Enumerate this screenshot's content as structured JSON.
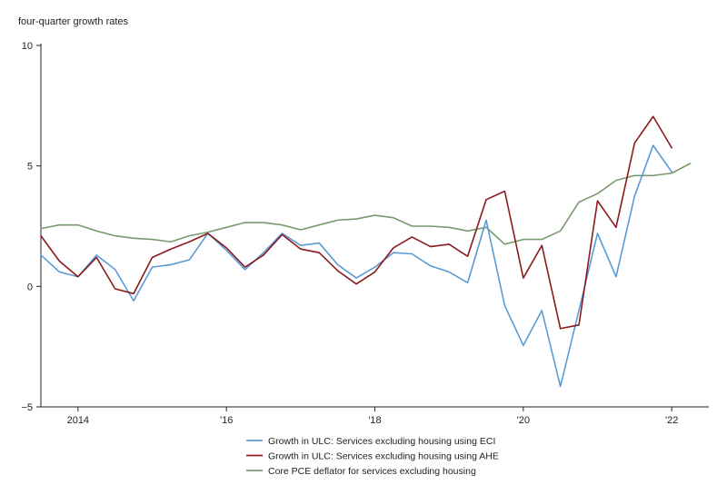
{
  "chart_data": {
    "type": "line",
    "ylabel": "four-quarter growth rates",
    "ylim": [
      -5,
      10
    ],
    "xlim": [
      2013.5,
      2022.5
    ],
    "y_ticks": [
      {
        "value": 10,
        "label": "10"
      },
      {
        "value": 5,
        "label": "5"
      },
      {
        "value": 0,
        "label": "0"
      },
      {
        "value": -5,
        "label": "−5"
      }
    ],
    "x_ticks": [
      {
        "value": 2014,
        "label": "2014"
      },
      {
        "value": 2016,
        "label": "'16"
      },
      {
        "value": 2018,
        "label": "'18"
      },
      {
        "value": 2020,
        "label": "'20"
      },
      {
        "value": 2022,
        "label": "'22"
      }
    ],
    "grid": false,
    "legend_position": "bottom",
    "x": [
      2013.5,
      2013.75,
      2014.0,
      2014.25,
      2014.5,
      2014.75,
      2015.0,
      2015.25,
      2015.5,
      2015.75,
      2016.0,
      2016.25,
      2016.5,
      2016.75,
      2017.0,
      2017.25,
      2017.5,
      2017.75,
      2018.0,
      2018.25,
      2018.5,
      2018.75,
      2019.0,
      2019.25,
      2019.5,
      2019.75,
      2020.0,
      2020.25,
      2020.5,
      2020.75,
      2021.0,
      2021.25,
      2021.5,
      2021.75,
      2022.0,
      2022.25
    ],
    "series": [
      {
        "name": "Growth in ULC: Services excluding housing using ECI",
        "color": "#5b9bd5",
        "values": [
          1.3,
          0.6,
          0.4,
          1.3,
          0.7,
          -0.6,
          0.8,
          0.9,
          1.1,
          2.2,
          1.5,
          0.7,
          1.4,
          2.2,
          1.7,
          1.8,
          0.9,
          0.35,
          0.8,
          1.4,
          1.35,
          0.85,
          0.6,
          0.15,
          2.75,
          -0.8,
          -2.45,
          -1.0,
          -4.15,
          -1.0,
          2.2,
          0.4,
          3.75,
          5.85,
          4.75,
          null
        ]
      },
      {
        "name": "Growth in ULC: Services excluding housing using AHE",
        "color": "#8b1a1f",
        "values": [
          2.1,
          1.05,
          0.4,
          1.2,
          -0.1,
          -0.3,
          1.2,
          1.55,
          1.85,
          2.2,
          1.6,
          0.8,
          1.3,
          2.15,
          1.55,
          1.4,
          0.65,
          0.1,
          0.6,
          1.6,
          2.05,
          1.65,
          1.75,
          1.25,
          3.6,
          3.95,
          0.35,
          1.7,
          -1.75,
          -1.6,
          3.55,
          2.45,
          5.95,
          7.05,
          5.75,
          null
        ]
      },
      {
        "name": "Core PCE deflator for services excluding housing",
        "color": "#7a9a6e",
        "values": [
          2.4,
          2.55,
          2.55,
          2.3,
          2.1,
          2.0,
          1.95,
          1.85,
          2.1,
          2.25,
          2.45,
          2.65,
          2.65,
          2.55,
          2.35,
          2.55,
          2.75,
          2.8,
          2.95,
          2.85,
          2.5,
          2.5,
          2.45,
          2.3,
          2.45,
          1.75,
          1.95,
          1.95,
          2.3,
          3.5,
          3.85,
          4.4,
          4.6,
          4.6,
          4.7,
          5.1
        ]
      }
    ]
  }
}
